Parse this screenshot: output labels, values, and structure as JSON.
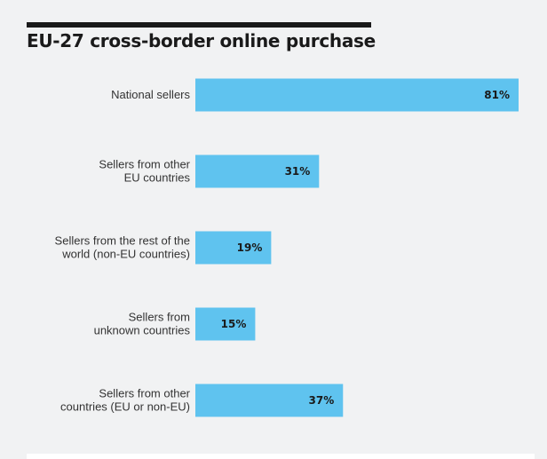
{
  "chart_data": {
    "type": "bar",
    "orientation": "horizontal",
    "title": "EU-27 cross-border online purchase",
    "categories": [
      [
        "National sellers"
      ],
      [
        "Sellers from other",
        "EU countries"
      ],
      [
        "Sellers from the rest of the",
        "world (non-EU countries)"
      ],
      [
        "Sellers from",
        "unknown countries"
      ],
      [
        "Sellers from other",
        "countries (EU or non-EU)"
      ]
    ],
    "values": [
      81,
      31,
      19,
      15,
      37
    ],
    "value_labels": [
      "81%",
      "31%",
      "19%",
      "15%",
      "37%"
    ],
    "xlim": [
      0,
      81
    ],
    "grid": false,
    "legend": "none",
    "bar_color": "#5fc3ef"
  }
}
